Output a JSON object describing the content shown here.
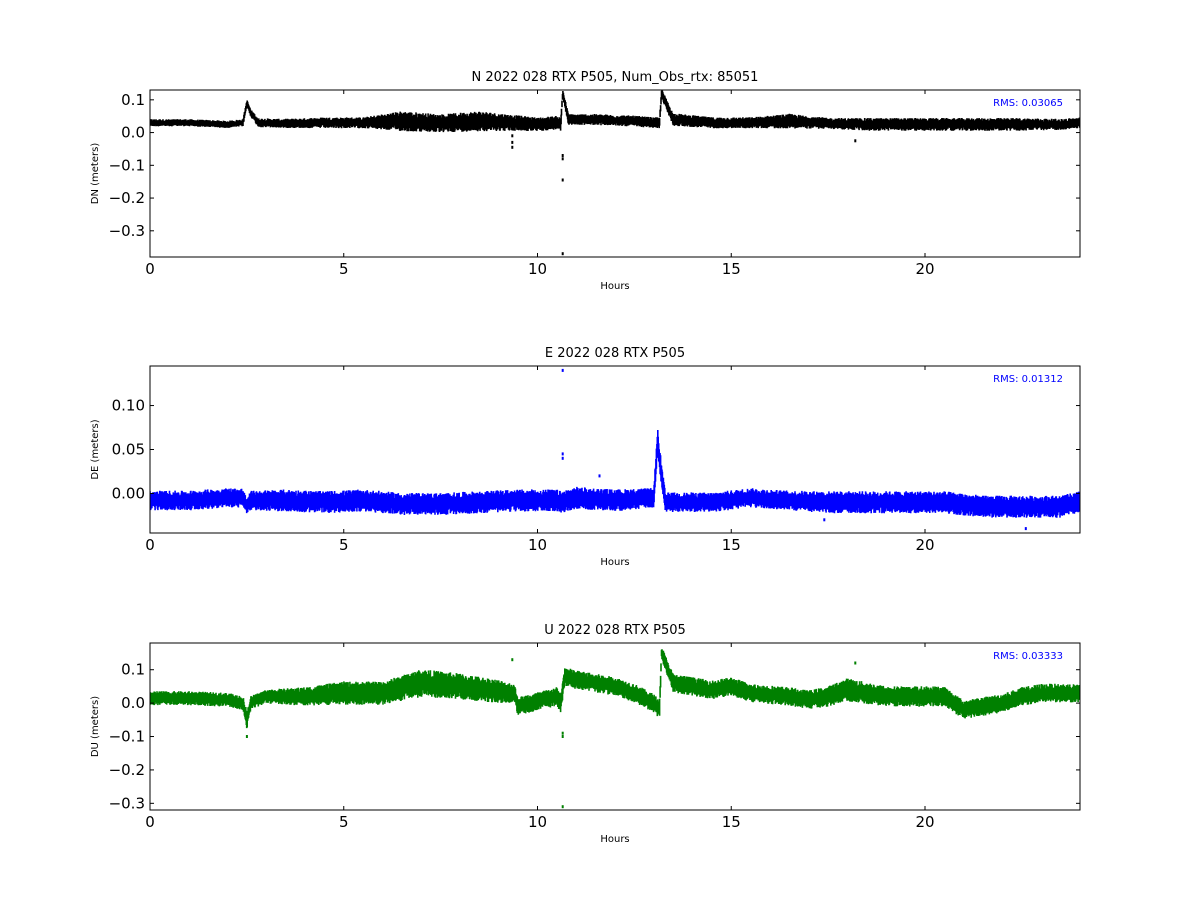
{
  "chart_data": [
    {
      "type": "scatter",
      "title": "N 2022 028 RTX  P505, Num_Obs_rtx: 85051",
      "xlabel": "Hours",
      "ylabel": "DN (meters)",
      "xlim": [
        0,
        24
      ],
      "ylim": [
        -0.38,
        0.13
      ],
      "xticks": [
        0,
        5,
        10,
        15,
        20
      ],
      "xtick_labels": [
        "0",
        "5",
        "10",
        "15",
        "20"
      ],
      "yticks": [
        0.1,
        0.0,
        -0.1,
        -0.2,
        -0.3
      ],
      "ytick_labels": [
        "0.1",
        "0.0",
        "−0.1",
        "−0.2",
        "−0.3"
      ],
      "grid": false,
      "annotation": "RMS:  0.03065",
      "annotation_color": "#0000ff",
      "series": [
        {
          "color": "#000000",
          "x": [
            0,
            1,
            2,
            2.4,
            2.5,
            2.6,
            2.8,
            3.5,
            4.5,
            5.5,
            6.5,
            7.5,
            8.5,
            9.3,
            10.0,
            10.5,
            10.6,
            10.65,
            10.8,
            11.5,
            12.5,
            13.0,
            13.15,
            13.2,
            13.5,
            14.5,
            15.5,
            16.5,
            17.5,
            18.5,
            19.5,
            20.5,
            21.5,
            22.5,
            23.5,
            24
          ],
          "y": [
            0.03,
            0.03,
            0.025,
            0.03,
            0.09,
            0.06,
            0.03,
            0.028,
            0.03,
            0.03,
            0.035,
            0.028,
            0.035,
            0.03,
            0.025,
            0.03,
            0.025,
            0.12,
            0.04,
            0.04,
            0.035,
            0.03,
            0.03,
            0.12,
            0.04,
            0.03,
            0.03,
            0.035,
            0.028,
            0.025,
            0.025,
            0.025,
            0.025,
            0.025,
            0.025,
            0.03
          ],
          "noise": [
            0.008,
            0.008,
            0.008,
            0.008,
            0.008,
            0.008,
            0.01,
            0.01,
            0.012,
            0.012,
            0.022,
            0.02,
            0.022,
            0.018,
            0.015,
            0.015,
            0.015,
            0.01,
            0.012,
            0.012,
            0.012,
            0.012,
            0.012,
            0.01,
            0.014,
            0.012,
            0.012,
            0.016,
            0.012,
            0.014,
            0.014,
            0.014,
            0.014,
            0.014,
            0.012,
            0.012
          ]
        }
      ],
      "outliers": [
        {
          "x": 9.35,
          "y": -0.01
        },
        {
          "x": 9.35,
          "y": -0.03
        },
        {
          "x": 9.35,
          "y": -0.045
        },
        {
          "x": 10.65,
          "y": -0.07
        },
        {
          "x": 10.65,
          "y": -0.08
        },
        {
          "x": 10.65,
          "y": -0.145
        },
        {
          "x": 10.65,
          "y": -0.37
        },
        {
          "x": 18.2,
          "y": -0.025
        }
      ]
    },
    {
      "type": "scatter",
      "title": "E 2022 028 RTX  P505",
      "xlabel": "Hours",
      "ylabel": "DE (meters)",
      "xlim": [
        0,
        24
      ],
      "ylim": [
        -0.045,
        0.145
      ],
      "xticks": [
        0,
        5,
        10,
        15,
        20
      ],
      "xtick_labels": [
        "0",
        "5",
        "10",
        "15",
        "20"
      ],
      "yticks": [
        0.1,
        0.05,
        0.0
      ],
      "ytick_labels": [
        "0.10",
        "0.05",
        "0.00"
      ],
      "grid": false,
      "annotation": "RMS:  0.01312",
      "annotation_color": "#0000ff",
      "series": [
        {
          "color": "#0000ff",
          "x": [
            0,
            1,
            2,
            2.4,
            2.5,
            2.6,
            3.5,
            4.5,
            5.5,
            6.5,
            7.5,
            8.5,
            9.5,
            10.5,
            10.6,
            11.0,
            12.0,
            13.0,
            13.1,
            13.2,
            13.3,
            13.5,
            14.5,
            15.5,
            16.5,
            17.5,
            18.5,
            19.5,
            20.5,
            21.5,
            22.5,
            23.5,
            24
          ],
          "y": [
            -0.008,
            -0.008,
            -0.005,
            -0.005,
            -0.015,
            -0.008,
            -0.008,
            -0.01,
            -0.008,
            -0.012,
            -0.012,
            -0.01,
            -0.008,
            -0.008,
            -0.01,
            -0.005,
            -0.008,
            -0.005,
            0.06,
            0.02,
            -0.01,
            -0.01,
            -0.01,
            -0.005,
            -0.008,
            -0.01,
            -0.01,
            -0.01,
            -0.01,
            -0.015,
            -0.015,
            -0.015,
            -0.01
          ],
          "noise": [
            0.008,
            0.008,
            0.008,
            0.008,
            0.006,
            0.008,
            0.009,
            0.009,
            0.009,
            0.009,
            0.009,
            0.009,
            0.009,
            0.009,
            0.009,
            0.009,
            0.009,
            0.008,
            0.01,
            0.01,
            0.008,
            0.008,
            0.008,
            0.008,
            0.008,
            0.009,
            0.009,
            0.009,
            0.009,
            0.009,
            0.009,
            0.009,
            0.009
          ]
        }
      ],
      "outliers": [
        {
          "x": 10.65,
          "y": 0.14
        },
        {
          "x": 10.65,
          "y": 0.045
        },
        {
          "x": 10.65,
          "y": 0.04
        },
        {
          "x": 11.6,
          "y": 0.02
        },
        {
          "x": 17.4,
          "y": -0.03
        },
        {
          "x": 22.6,
          "y": -0.04
        }
      ]
    },
    {
      "type": "scatter",
      "title": "U 2022 028 RTX  P505",
      "xlabel": "Hours",
      "ylabel": "DU (meters)",
      "xlim": [
        0,
        24
      ],
      "ylim": [
        -0.32,
        0.18
      ],
      "xticks": [
        0,
        5,
        10,
        15,
        20
      ],
      "xtick_labels": [
        "0",
        "5",
        "10",
        "15",
        "20"
      ],
      "yticks": [
        0.1,
        0.0,
        -0.1,
        -0.2,
        -0.3
      ],
      "ytick_labels": [
        "0.1",
        "0.0",
        "−0.1",
        "−0.2",
        "−0.3"
      ],
      "grid": false,
      "annotation": "RMS:  0.03333",
      "annotation_color": "#0000ff",
      "series": [
        {
          "color": "#008000",
          "x": [
            0,
            1,
            2,
            2.4,
            2.5,
            2.6,
            3.0,
            4.0,
            5.0,
            6.0,
            7.0,
            8.0,
            9.0,
            9.4,
            9.5,
            10.5,
            10.6,
            10.7,
            11.0,
            12.0,
            12.5,
            13.0,
            13.15,
            13.2,
            13.5,
            14.5,
            15.0,
            15.5,
            16.5,
            17.0,
            17.5,
            18.0,
            19.0,
            20.0,
            20.5,
            21.0,
            22.0,
            22.5,
            23.0,
            24
          ],
          "y": [
            0.015,
            0.015,
            0.01,
            0.0,
            -0.05,
            0.0,
            0.02,
            0.02,
            0.03,
            0.03,
            0.06,
            0.05,
            0.035,
            0.03,
            -0.01,
            0.02,
            0.0,
            0.08,
            0.07,
            0.05,
            0.03,
            0.0,
            -0.02,
            0.15,
            0.06,
            0.04,
            0.05,
            0.03,
            0.02,
            0.01,
            0.02,
            0.04,
            0.02,
            0.02,
            0.02,
            -0.02,
            0.0,
            0.02,
            0.03,
            0.03
          ],
          "noise": [
            0.015,
            0.015,
            0.015,
            0.015,
            0.02,
            0.015,
            0.015,
            0.02,
            0.025,
            0.025,
            0.03,
            0.028,
            0.025,
            0.02,
            0.02,
            0.02,
            0.02,
            0.02,
            0.02,
            0.02,
            0.02,
            0.02,
            0.02,
            0.015,
            0.02,
            0.02,
            0.02,
            0.02,
            0.02,
            0.02,
            0.022,
            0.025,
            0.022,
            0.022,
            0.022,
            0.02,
            0.02,
            0.02,
            0.02,
            0.02
          ]
        }
      ],
      "outliers": [
        {
          "x": 10.65,
          "y": -0.09
        },
        {
          "x": 10.65,
          "y": -0.1
        },
        {
          "x": 10.65,
          "y": -0.31
        },
        {
          "x": 9.35,
          "y": 0.13
        },
        {
          "x": 18.2,
          "y": 0.12
        },
        {
          "x": 2.5,
          "y": -0.1
        }
      ]
    }
  ]
}
